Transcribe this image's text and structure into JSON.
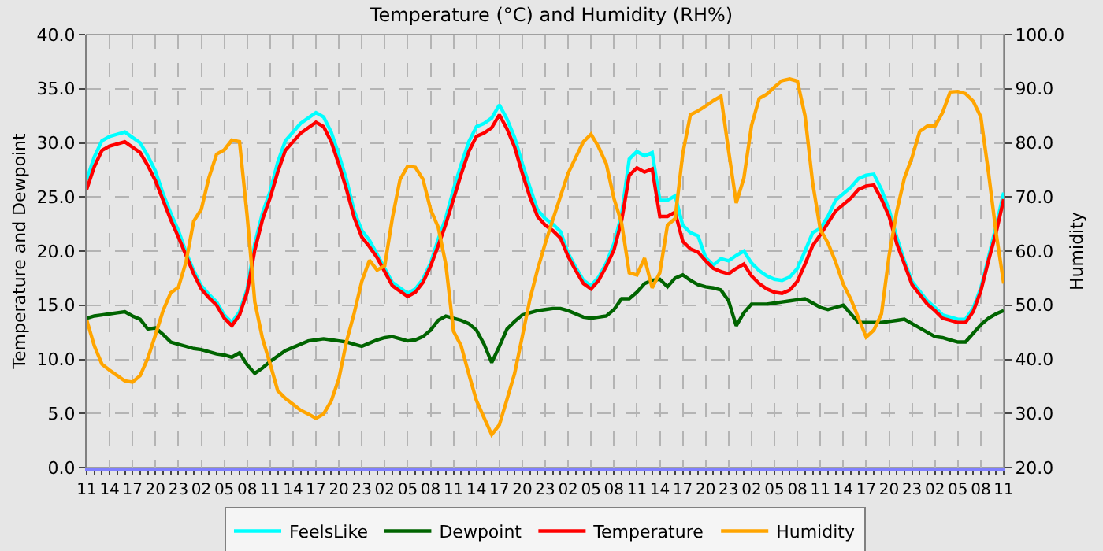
{
  "chart_data": {
    "type": "line",
    "title": "Temperature (°C) and Humidity (RH%)",
    "ylabel": "Temperature and Dewpoint",
    "y2label": "Humidity",
    "categories": [
      "11",
      null,
      null,
      "14",
      null,
      null,
      "17",
      null,
      null,
      "20",
      null,
      null,
      "23",
      null,
      null,
      "02",
      null,
      null,
      "05",
      null,
      null,
      "08",
      null,
      null,
      "11",
      null,
      null,
      "14",
      null,
      null,
      "17",
      null,
      null,
      "20",
      null,
      null,
      "23",
      null,
      null,
      "02",
      null,
      null,
      "05",
      null,
      null,
      "08",
      null,
      null,
      "11",
      null,
      null,
      "14",
      null,
      null,
      "17",
      null,
      null,
      "20",
      null,
      null,
      "23",
      null,
      null,
      "02",
      null,
      null,
      "05",
      null,
      null,
      "08",
      null,
      null,
      "11",
      null,
      null,
      "14",
      null,
      null,
      "17",
      null,
      null,
      "20",
      null,
      null,
      "23",
      null,
      null,
      "02",
      null,
      null,
      "05",
      null,
      null,
      "08",
      null,
      null,
      "11",
      null,
      null,
      "14",
      null,
      null,
      "17",
      null,
      null,
      "20",
      null,
      null,
      "23",
      null,
      null,
      "02",
      null,
      null,
      "05",
      null,
      null,
      "08",
      null,
      null,
      "11"
    ],
    "ylim": [
      0,
      40
    ],
    "yticks": [
      {
        "value": 0,
        "label": "0.0"
      },
      {
        "value": 5,
        "label": "5.0"
      },
      {
        "value": 10,
        "label": "10.0"
      },
      {
        "value": 15,
        "label": "15.0"
      },
      {
        "value": 20,
        "label": "20.0"
      },
      {
        "value": 25,
        "label": "25.0"
      },
      {
        "value": 30,
        "label": "30.0"
      },
      {
        "value": 35,
        "label": "35.0"
      },
      {
        "value": 40,
        "label": "40.0"
      }
    ],
    "y2lim": [
      20,
      100
    ],
    "y2ticks": [
      {
        "value": 20,
        "label": "20.0"
      },
      {
        "value": 30,
        "label": "30.0"
      },
      {
        "value": 40,
        "label": "40.0"
      },
      {
        "value": 50,
        "label": "50.0"
      },
      {
        "value": 60,
        "label": "60.0"
      },
      {
        "value": 70,
        "label": "70.0"
      },
      {
        "value": 80,
        "label": "80.0"
      },
      {
        "value": 90,
        "label": "90.0"
      },
      {
        "value": 100,
        "label": "100.0"
      }
    ],
    "grid": true,
    "legend": "bottom",
    "marker": "none",
    "line_style": "solid",
    "series": [
      {
        "name": "FeelsLike",
        "color": "#00ffff",
        "values": [
          26.6,
          28.7,
          30.2,
          30.6,
          30.8,
          31.0,
          30.5,
          30.0,
          28.8,
          27.4,
          25.3,
          23.5,
          21.9,
          19.9,
          18.2,
          16.8,
          16.0,
          15.3,
          14.1,
          13.4,
          14.4,
          16.5,
          20.7,
          23.5,
          25.5,
          28.2,
          30.2,
          31.0,
          31.8,
          32.3,
          32.8,
          32.4,
          31.0,
          28.9,
          26.6,
          23.7,
          21.9,
          21.0,
          19.7,
          18.4,
          17.1,
          16.6,
          16.1,
          16.5,
          17.4,
          18.9,
          21.1,
          23.1,
          25.7,
          28.0,
          30.1,
          31.5,
          31.8,
          32.3,
          33.5,
          32.2,
          30.5,
          28.1,
          25.9,
          23.8,
          23.0,
          22.5,
          21.8,
          19.8,
          18.5,
          17.3,
          16.8,
          17.6,
          18.9,
          20.7,
          23.4,
          28.5,
          29.2,
          28.8,
          29.1,
          24.7,
          24.7,
          25.1,
          22.4,
          21.7,
          21.4,
          19.4,
          18.7,
          19.3,
          19.1,
          19.6,
          20.0,
          18.9,
          18.2,
          17.7,
          17.4,
          17.3,
          17.6,
          18.4,
          20.0,
          21.7,
          22.1,
          23.2,
          24.7,
          25.3,
          25.9,
          26.7,
          27.0,
          27.1,
          25.7,
          23.8,
          21.3,
          19.1,
          17.2,
          16.3,
          15.4,
          14.8,
          14.1,
          13.9,
          13.7,
          13.7,
          14.7,
          16.6,
          19.4,
          22.3,
          25.4
        ]
      },
      {
        "name": "Dewpoint",
        "color": "#006400",
        "values": [
          13.8,
          14.0,
          14.1,
          14.2,
          14.3,
          14.4,
          14.0,
          13.7,
          12.8,
          12.9,
          12.3,
          11.6,
          11.4,
          11.2,
          11.0,
          10.9,
          10.7,
          10.5,
          10.4,
          10.2,
          10.6,
          9.5,
          8.7,
          9.2,
          9.8,
          10.3,
          10.8,
          11.1,
          11.4,
          11.7,
          11.8,
          11.9,
          11.8,
          11.7,
          11.6,
          11.4,
          11.2,
          11.5,
          11.8,
          12.0,
          12.1,
          11.9,
          11.7,
          11.8,
          12.1,
          12.7,
          13.6,
          14.0,
          13.8,
          13.6,
          13.3,
          12.7,
          11.4,
          9.7,
          11.2,
          12.8,
          13.5,
          14.1,
          14.3,
          14.5,
          14.6,
          14.7,
          14.7,
          14.5,
          14.2,
          13.9,
          13.8,
          13.9,
          14.0,
          14.6,
          15.6,
          15.6,
          16.2,
          17.0,
          17.3,
          17.4,
          16.7,
          17.5,
          17.8,
          17.3,
          16.9,
          16.7,
          16.6,
          16.4,
          15.4,
          13.1,
          14.3,
          15.1,
          15.1,
          15.1,
          15.2,
          15.3,
          15.4,
          15.5,
          15.6,
          15.2,
          14.8,
          14.6,
          14.8,
          15.0,
          14.2,
          13.4,
          13.4,
          13.4,
          13.4,
          13.5,
          13.6,
          13.7,
          13.3,
          12.9,
          12.5,
          12.1,
          12.0,
          11.8,
          11.6,
          11.6,
          12.4,
          13.2,
          13.8,
          14.2,
          14.5
        ]
      },
      {
        "name": "Temperature",
        "color": "#ff0000",
        "values": [
          25.7,
          27.8,
          29.3,
          29.7,
          29.9,
          30.1,
          29.6,
          29.1,
          27.9,
          26.5,
          24.7,
          22.9,
          21.3,
          19.6,
          17.9,
          16.5,
          15.7,
          15.0,
          13.8,
          13.1,
          14.1,
          16.2,
          20.1,
          22.9,
          24.9,
          27.3,
          29.3,
          30.1,
          30.9,
          31.4,
          31.9,
          31.5,
          30.1,
          28.0,
          25.7,
          23.1,
          21.3,
          20.4,
          19.4,
          18.1,
          16.8,
          16.3,
          15.8,
          16.2,
          17.1,
          18.6,
          20.5,
          22.5,
          24.8,
          27.1,
          29.2,
          30.6,
          30.9,
          31.4,
          32.6,
          31.3,
          29.6,
          27.2,
          25.0,
          23.2,
          22.4,
          21.9,
          21.2,
          19.5,
          18.2,
          17.0,
          16.5,
          17.3,
          18.6,
          20.1,
          22.8,
          27.0,
          27.7,
          27.3,
          27.6,
          23.2,
          23.2,
          23.6,
          20.9,
          20.2,
          19.9,
          19.1,
          18.4,
          18.1,
          17.9,
          18.4,
          18.8,
          17.7,
          17.0,
          16.5,
          16.2,
          16.1,
          16.4,
          17.2,
          18.8,
          20.5,
          21.5,
          22.6,
          23.7,
          24.3,
          24.9,
          25.7,
          26.0,
          26.1,
          24.8,
          23.2,
          20.7,
          18.8,
          16.9,
          16.0,
          15.1,
          14.5,
          13.8,
          13.6,
          13.4,
          13.4,
          14.4,
          16.3,
          19.1,
          21.7,
          24.8
        ]
      },
      {
        "name": "Humidity",
        "color": "#ffa500",
        "axis": "y2",
        "values": [
          47.3,
          42.5,
          39.1,
          38.0,
          37.0,
          36.0,
          35.8,
          37.0,
          40.2,
          44.5,
          49.0,
          52.3,
          53.3,
          58.0,
          65.5,
          67.7,
          73.6,
          77.9,
          78.7,
          80.5,
          80.2,
          66.5,
          50.6,
          43.9,
          39.2,
          34.2,
          32.8,
          31.7,
          30.6,
          29.9,
          29.1,
          29.9,
          32.3,
          36.4,
          43.3,
          48.5,
          54.4,
          58.3,
          56.5,
          57.3,
          66.1,
          73.2,
          75.7,
          75.5,
          73.3,
          67.7,
          64.4,
          57.5,
          45.2,
          42.5,
          37.3,
          32.4,
          29.2,
          26.1,
          27.9,
          32.6,
          37.4,
          44.2,
          51.1,
          56.6,
          61.4,
          65.8,
          70.1,
          74.4,
          77.3,
          80.2,
          81.6,
          79.2,
          76.1,
          69.7,
          65.2,
          56.0,
          55.6,
          58.7,
          53.2,
          56.0,
          64.8,
          66.0,
          78.0,
          85.2,
          85.9,
          86.8,
          87.8,
          88.6,
          78.5,
          68.9,
          73.5,
          83.2,
          88.2,
          89.0,
          90.3,
          91.5,
          91.8,
          91.4,
          85.0,
          72.6,
          64.0,
          61.5,
          58.0,
          53.9,
          51.1,
          47.6,
          44.1,
          45.4,
          48.4,
          59.2,
          67.3,
          73.5,
          77.3,
          82.1,
          83.1,
          83.1,
          85.6,
          89.4,
          89.5,
          89.1,
          87.7,
          84.8,
          74.6,
          63.4,
          54.0
        ]
      }
    ]
  }
}
